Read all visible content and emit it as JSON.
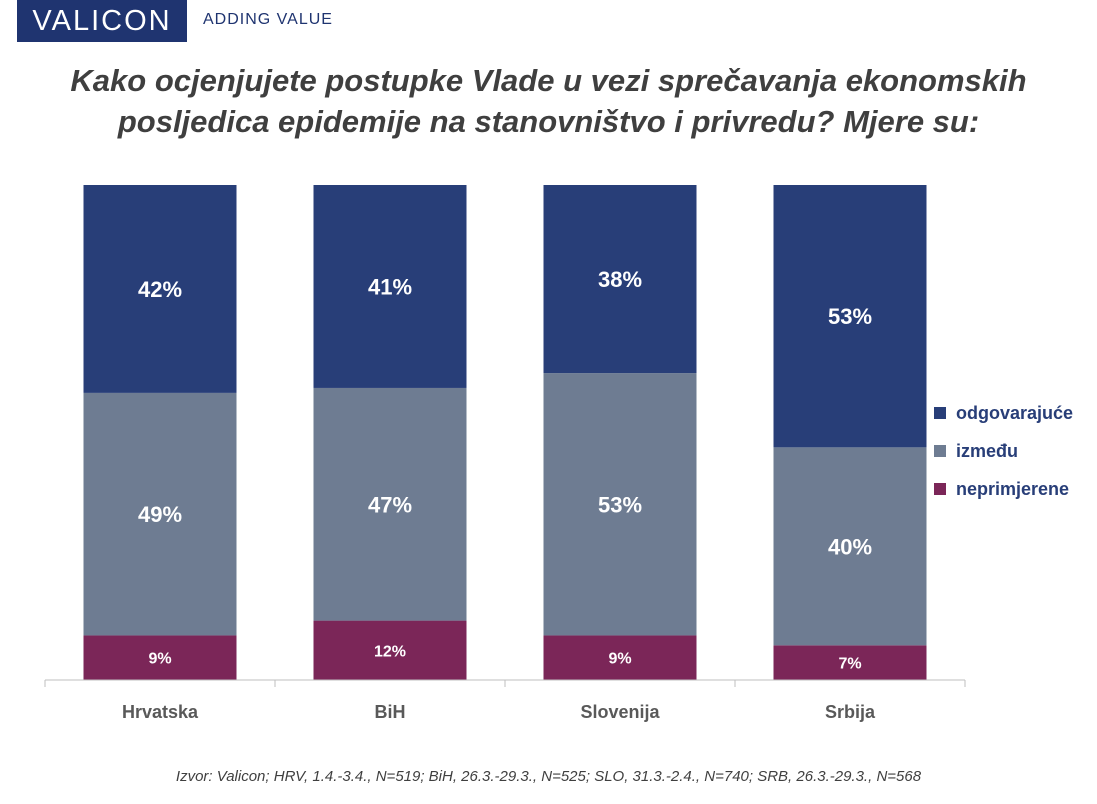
{
  "header": {
    "logo_text": "VALICON",
    "tagline": "ADDING VALUE",
    "brand_color": "#1f3470"
  },
  "title_lines": [
    "Kako ocjenjujete postupke Vlade u vezi sprečavanja ekonomskih",
    "posljedica epidemije  na stanovništvo i privredu? Mjere su:"
  ],
  "source": "Izvor: Valicon; HRV, 1.4.-3.4., N=519; BiH, 26.3.-29.3., N=525; SLO, 31.3.-2.4., N=740; SRB, 26.3.-29.3., N=568",
  "chart_data": {
    "type": "bar",
    "stacked": true,
    "categories": [
      "Hrvatska",
      "BiH",
      "Slovenija",
      "Srbija"
    ],
    "series": [
      {
        "name": "neprimjerene",
        "values": [
          9,
          12,
          9,
          7
        ],
        "labels": [
          "9%",
          "12%",
          "9%",
          "7%"
        ],
        "color": "#7b2658"
      },
      {
        "name": "između",
        "values": [
          49,
          47,
          53,
          40
        ],
        "labels": [
          "49%",
          "47%",
          "53%",
          "40%"
        ],
        "color": "#6e7c92"
      },
      {
        "name": "odgovarajuće",
        "values": [
          42,
          41,
          38,
          53
        ],
        "labels": [
          "42%",
          "41%",
          "38%",
          "53%"
        ],
        "color": "#283e78"
      }
    ],
    "legend_order": [
      "odgovarajuće",
      "između",
      "neprimjerene"
    ],
    "legend_position": "right",
    "ylim": [
      0,
      100
    ],
    "grid": false
  }
}
